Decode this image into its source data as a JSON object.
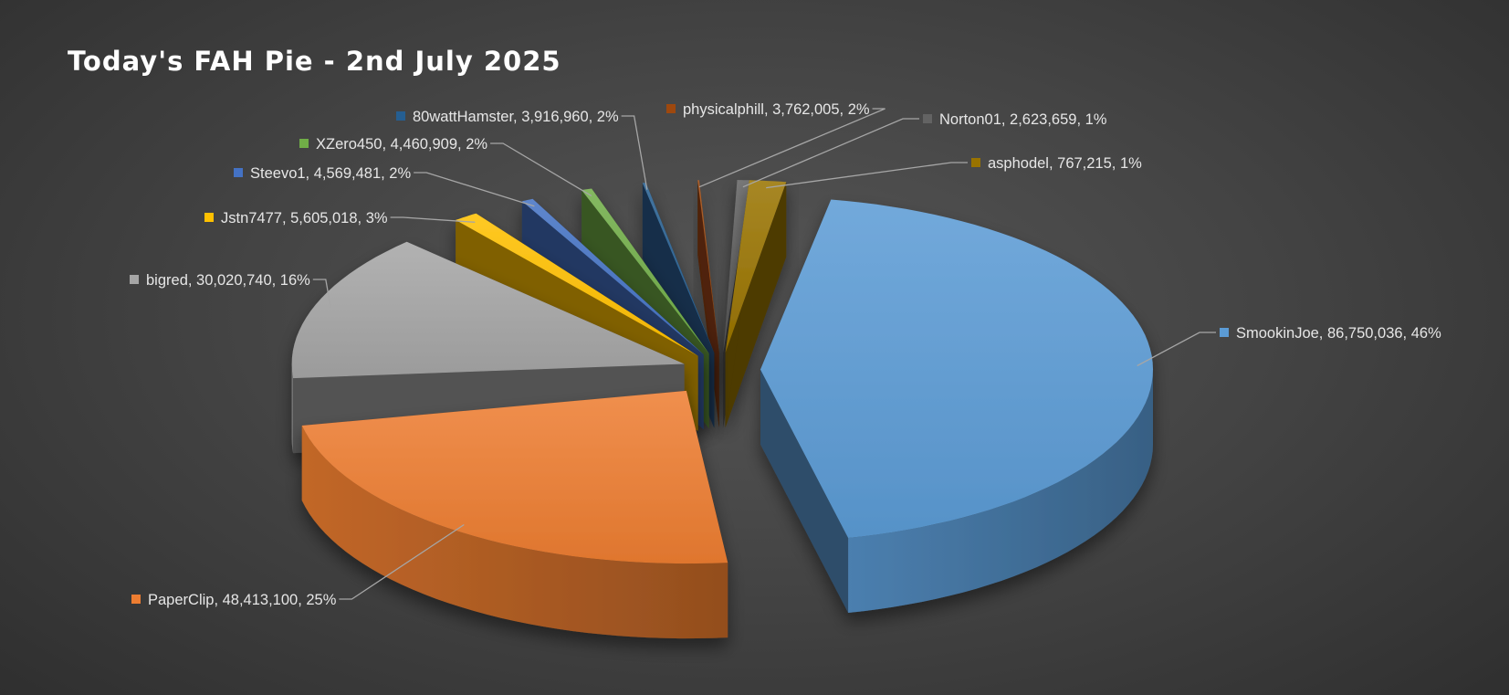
{
  "chart_data": {
    "type": "pie",
    "variant": "3d-exploded",
    "title": "Today's FAH Pie - 2nd July 2025",
    "label_format": "name, value, percent",
    "slices": [
      {
        "name": "SmookinJoe",
        "value": 86750036,
        "value_label": "86,750,036",
        "percent_label": "46%",
        "color": "#5b9bd5"
      },
      {
        "name": "PaperClip",
        "value": 48413100,
        "value_label": "48,413,100",
        "percent_label": "25%",
        "color": "#ed7d31"
      },
      {
        "name": "bigred",
        "value": 30020740,
        "value_label": "30,020,740",
        "percent_label": "16%",
        "color": "#a5a5a5"
      },
      {
        "name": "Jstn7477",
        "value": 5605018,
        "value_label": "5,605,018",
        "percent_label": "3%",
        "color": "#ffc000"
      },
      {
        "name": "Steevo1",
        "value": 4569481,
        "value_label": "4,569,481",
        "percent_label": "2%",
        "color": "#4472c4"
      },
      {
        "name": "XZero450",
        "value": 4460909,
        "value_label": "4,460,909",
        "percent_label": "2%",
        "color": "#70ad47"
      },
      {
        "name": "80wattHamster",
        "value": 3916960,
        "value_label": "3,916,960",
        "percent_label": "2%",
        "color": "#255e91"
      },
      {
        "name": "physicalphill",
        "value": 3762005,
        "value_label": "3,762,005",
        "percent_label": "2%",
        "color": "#9e480e"
      },
      {
        "name": "Norton01",
        "value": 2623659,
        "value_label": "2,623,659",
        "percent_label": "1%",
        "color": "#636363"
      },
      {
        "name": "asphodel",
        "value": 767215,
        "value_label": "767,215",
        "percent_label": "1%",
        "color": "#997300"
      }
    ],
    "legend": "none",
    "data_labels": "outside-with-leader-lines"
  }
}
